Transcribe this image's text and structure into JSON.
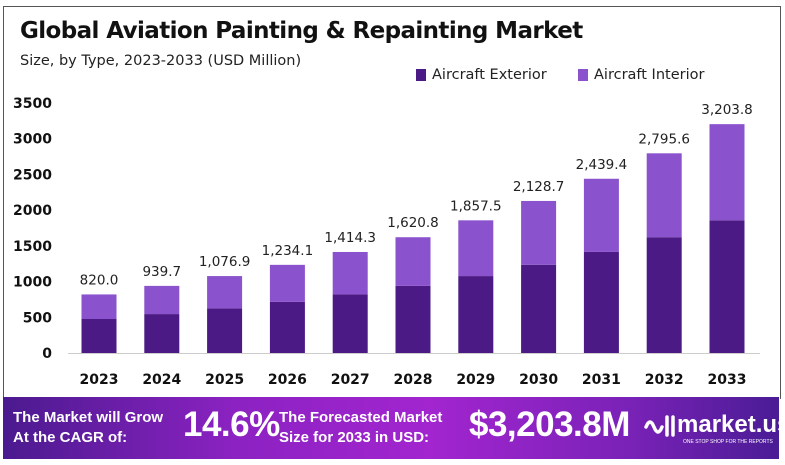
{
  "chart_data": {
    "type": "bar",
    "stacked": true,
    "title": "Global Aviation Painting & Repainting Market",
    "subtitle": "Size, by Type, 2023-2033 (USD Million)",
    "categories": [
      "2023",
      "2024",
      "2025",
      "2026",
      "2027",
      "2028",
      "2029",
      "2030",
      "2031",
      "2032",
      "2033"
    ],
    "series": [
      {
        "name": "Aircraft Exterior",
        "color": "#4b1a84",
        "values": [
          476,
          545,
          625,
          716,
          820,
          940,
          1077,
          1235,
          1415,
          1621,
          1858
        ]
      },
      {
        "name": "Aircraft Interior",
        "color": "#8a52cc",
        "values": [
          344,
          394.7,
          451.9,
          518.1,
          594.3,
          680.8,
          780.5,
          893.7,
          1024.4,
          1174.6,
          1345.8
        ]
      }
    ],
    "totals": [
      820.0,
      939.7,
      1076.9,
      1234.1,
      1414.3,
      1620.8,
      1857.5,
      2128.7,
      2439.4,
      2795.6,
      3203.8
    ],
    "total_labels": [
      "820.0",
      "939.7",
      "1,076.9",
      "1,234.1",
      "1,414.3",
      "1,620.8",
      "1,857.5",
      "2,128.7",
      "2,439.4",
      "2,795.6",
      "3,203.8"
    ],
    "yticks": [
      "0",
      "500",
      "1000",
      "1500",
      "2000",
      "2500",
      "3000",
      "3500"
    ],
    "ylim": [
      0,
      3500
    ],
    "grid": false,
    "legend": "top-right"
  },
  "banner": {
    "cagr_label_1": "The Market will Grow",
    "cagr_label_2": "At the CAGR of:",
    "cagr_value": "14.6%",
    "forecast_label_1": "The Forecasted Market",
    "forecast_label_2": "Size for 2033 in USD:",
    "forecast_value": "$3,203.8M",
    "logo_text": "market.us",
    "logo_tagline": "ONE STOP SHOP FOR THE REPORTS"
  }
}
